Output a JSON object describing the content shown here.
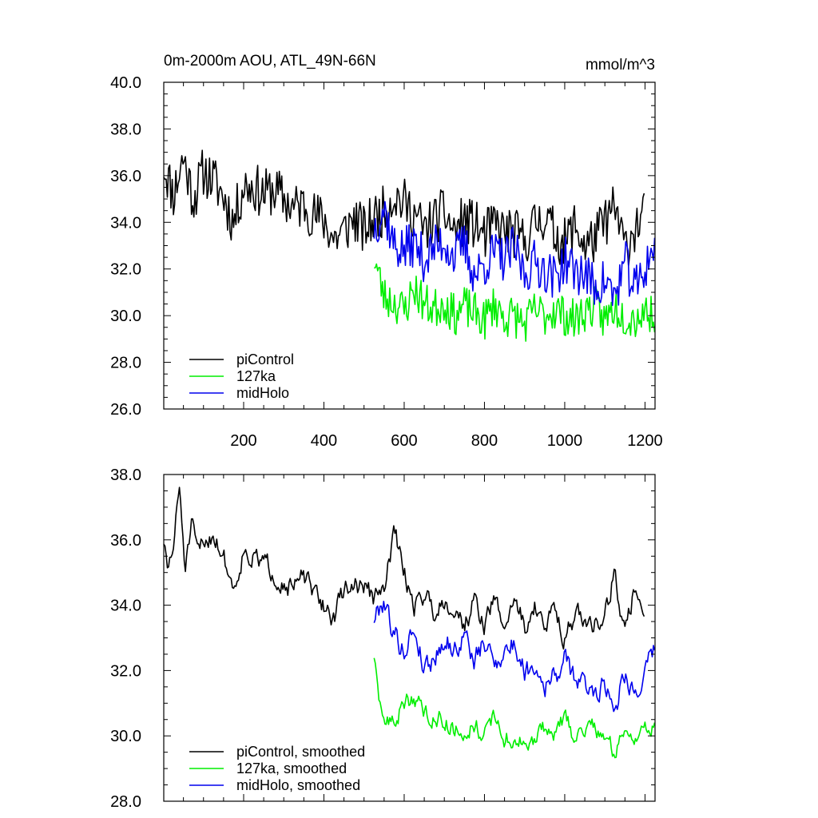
{
  "colors": {
    "piControl": "#000000",
    "127ka": "#00ee00",
    "midHolo": "#0000ee"
  },
  "chart_data": [
    {
      "type": "line",
      "panel": "top",
      "title": "0m-2000m AOU, ATL_49N-66N",
      "units": "mmol/m^3",
      "xlim": [
        1,
        1225
      ],
      "ylim": [
        26.0,
        40.0
      ],
      "x_ticks": [
        200,
        400,
        600,
        800,
        1000,
        1200
      ],
      "x_tick_labels": [
        "200",
        "400",
        "600",
        "800",
        "1000",
        "1200"
      ],
      "y_ticks": [
        26,
        28,
        30,
        32,
        34,
        36,
        38,
        40
      ],
      "y_tick_labels": [
        "26.0",
        "28.0",
        "30.0",
        "32.0",
        "34.0",
        "36.0",
        "38.0",
        "40.0"
      ],
      "legend": [
        "piControl",
        "127ka",
        "midHolo"
      ],
      "legend_position": "bottom-left",
      "series": [
        {
          "name": "piControl",
          "x": [
            1,
            25,
            50,
            75,
            100,
            125,
            150,
            175,
            200,
            225,
            250,
            275,
            300,
            325,
            350,
            375,
            400,
            425,
            450,
            475,
            500,
            525,
            550,
            575,
            600,
            625,
            650,
            675,
            700,
            725,
            750,
            775,
            800,
            825,
            850,
            875,
            900,
            925,
            950,
            975,
            1000,
            1025,
            1050,
            1075,
            1100,
            1125,
            1150,
            1175,
            1200
          ],
          "values": [
            36.5,
            35.2,
            36.8,
            35.0,
            36.2,
            35.8,
            35.1,
            34.0,
            35.6,
            35.5,
            35.2,
            35.4,
            35.0,
            34.6,
            34.8,
            34.3,
            34.1,
            33.3,
            33.6,
            34.2,
            33.6,
            34.2,
            34.5,
            35.2,
            34.8,
            34.4,
            33.6,
            34.1,
            34.4,
            33.6,
            34.1,
            33.9,
            33.4,
            33.9,
            33.6,
            33.5,
            33.2,
            33.9,
            34.3,
            33.5,
            33.1,
            33.9,
            33.0,
            33.3,
            34.0,
            34.6,
            32.9,
            33.8,
            34.3
          ],
          "noise": 1.1,
          "seed": 11
        },
        {
          "name": "127ka",
          "x": [
            525,
            550,
            575,
            600,
            625,
            650,
            675,
            700,
            725,
            750,
            775,
            800,
            825,
            850,
            875,
            900,
            925,
            950,
            975,
            1000,
            1025,
            1050,
            1075,
            1100,
            1125,
            1150,
            1175,
            1200,
            1225
          ],
          "values": [
            32.5,
            30.8,
            30.6,
            30.2,
            31.2,
            30.5,
            30.3,
            30.6,
            30.0,
            30.4,
            30.1,
            29.8,
            30.5,
            29.9,
            30.0,
            29.6,
            30.2,
            30.0,
            30.3,
            30.0,
            29.8,
            30.2,
            30.4,
            29.8,
            30.4,
            30.0,
            29.9,
            30.2,
            30.1
          ],
          "noise": 0.9,
          "seed": 23
        },
        {
          "name": "midHolo",
          "x": [
            525,
            550,
            575,
            600,
            625,
            650,
            675,
            700,
            725,
            750,
            775,
            800,
            825,
            850,
            875,
            900,
            925,
            950,
            975,
            1000,
            1025,
            1050,
            1075,
            1100,
            1125,
            1150,
            1175,
            1200,
            1225
          ],
          "values": [
            33.8,
            34.6,
            33.0,
            32.8,
            33.1,
            32.4,
            32.9,
            33.2,
            32.5,
            33.1,
            31.7,
            32.2,
            32.7,
            32.4,
            32.9,
            31.8,
            32.3,
            32.0,
            31.6,
            32.4,
            31.9,
            31.8,
            31.2,
            31.5,
            30.8,
            32.3,
            31.1,
            32.0,
            33.2
          ],
          "noise": 1.0,
          "seed": 37
        }
      ]
    },
    {
      "type": "line",
      "panel": "bottom",
      "xlim": [
        1,
        1225
      ],
      "ylim": [
        28.0,
        38.0
      ],
      "x_ticks": [
        200,
        400,
        600,
        800,
        1000,
        1200
      ],
      "y_ticks": [
        28,
        30,
        32,
        34,
        36,
        38
      ],
      "y_tick_labels": [
        "28.0",
        "30.0",
        "32.0",
        "34.0",
        "36.0",
        "38.0"
      ],
      "legend": [
        "piControl, smoothed",
        "127ka, smoothed",
        "midHolo, smoothed"
      ],
      "legend_position": "bottom-left",
      "series": [
        {
          "name": "piControl, smoothed",
          "x": [
            1,
            10,
            25,
            40,
            55,
            70,
            85,
            100,
            125,
            150,
            175,
            200,
            225,
            250,
            275,
            300,
            325,
            350,
            375,
            400,
            425,
            450,
            475,
            500,
            525,
            550,
            575,
            600,
            625,
            650,
            675,
            700,
            725,
            750,
            775,
            800,
            825,
            850,
            875,
            900,
            925,
            950,
            975,
            1000,
            1025,
            1050,
            1075,
            1100,
            1125,
            1150,
            1175,
            1200
          ],
          "values": [
            36.0,
            35.0,
            35.8,
            37.6,
            35.1,
            36.4,
            35.6,
            35.9,
            36.2,
            35.5,
            34.5,
            35.7,
            35.4,
            35.3,
            35.0,
            34.7,
            34.5,
            34.9,
            34.3,
            34.0,
            33.6,
            34.5,
            34.6,
            34.6,
            34.2,
            34.4,
            36.3,
            35.0,
            34.0,
            34.4,
            33.8,
            34.2,
            33.9,
            33.4,
            34.1,
            33.4,
            34.2,
            33.3,
            34.3,
            33.3,
            34.0,
            33.2,
            34.0,
            33.0,
            33.7,
            33.5,
            33.4,
            33.8,
            35.0,
            33.0,
            34.6,
            33.7
          ],
          "noise": 0.45,
          "seed": 51
        },
        {
          "name": "127ka, smoothed",
          "x": [
            525,
            535,
            550,
            575,
            600,
            625,
            650,
            675,
            700,
            725,
            750,
            775,
            800,
            825,
            850,
            875,
            900,
            925,
            950,
            975,
            1000,
            1025,
            1050,
            1075,
            1100,
            1125,
            1150,
            1175,
            1200,
            1225
          ],
          "values": [
            32.5,
            31.0,
            30.5,
            30.4,
            31.0,
            31.2,
            30.7,
            30.6,
            30.5,
            30.2,
            30.1,
            30.4,
            30.0,
            30.6,
            29.9,
            29.9,
            29.7,
            29.8,
            30.3,
            30.0,
            30.5,
            30.0,
            30.2,
            30.3,
            30.0,
            29.4,
            30.3,
            30.0,
            30.1,
            30.3
          ],
          "noise": 0.4,
          "seed": 63
        },
        {
          "name": "midHolo, smoothed",
          "x": [
            525,
            550,
            575,
            600,
            625,
            650,
            675,
            700,
            725,
            750,
            775,
            800,
            825,
            850,
            875,
            900,
            925,
            950,
            975,
            1000,
            1025,
            1050,
            1075,
            1100,
            1125,
            1150,
            1175,
            1200,
            1225
          ],
          "values": [
            33.6,
            34.2,
            33.1,
            32.6,
            33.3,
            32.1,
            32.4,
            33.0,
            32.6,
            33.1,
            32.3,
            32.8,
            32.3,
            32.6,
            32.8,
            32.0,
            32.2,
            31.6,
            31.8,
            32.3,
            31.8,
            31.5,
            31.4,
            31.6,
            30.9,
            32.0,
            31.3,
            31.8,
            32.7
          ],
          "noise": 0.5,
          "seed": 79
        }
      ]
    }
  ]
}
